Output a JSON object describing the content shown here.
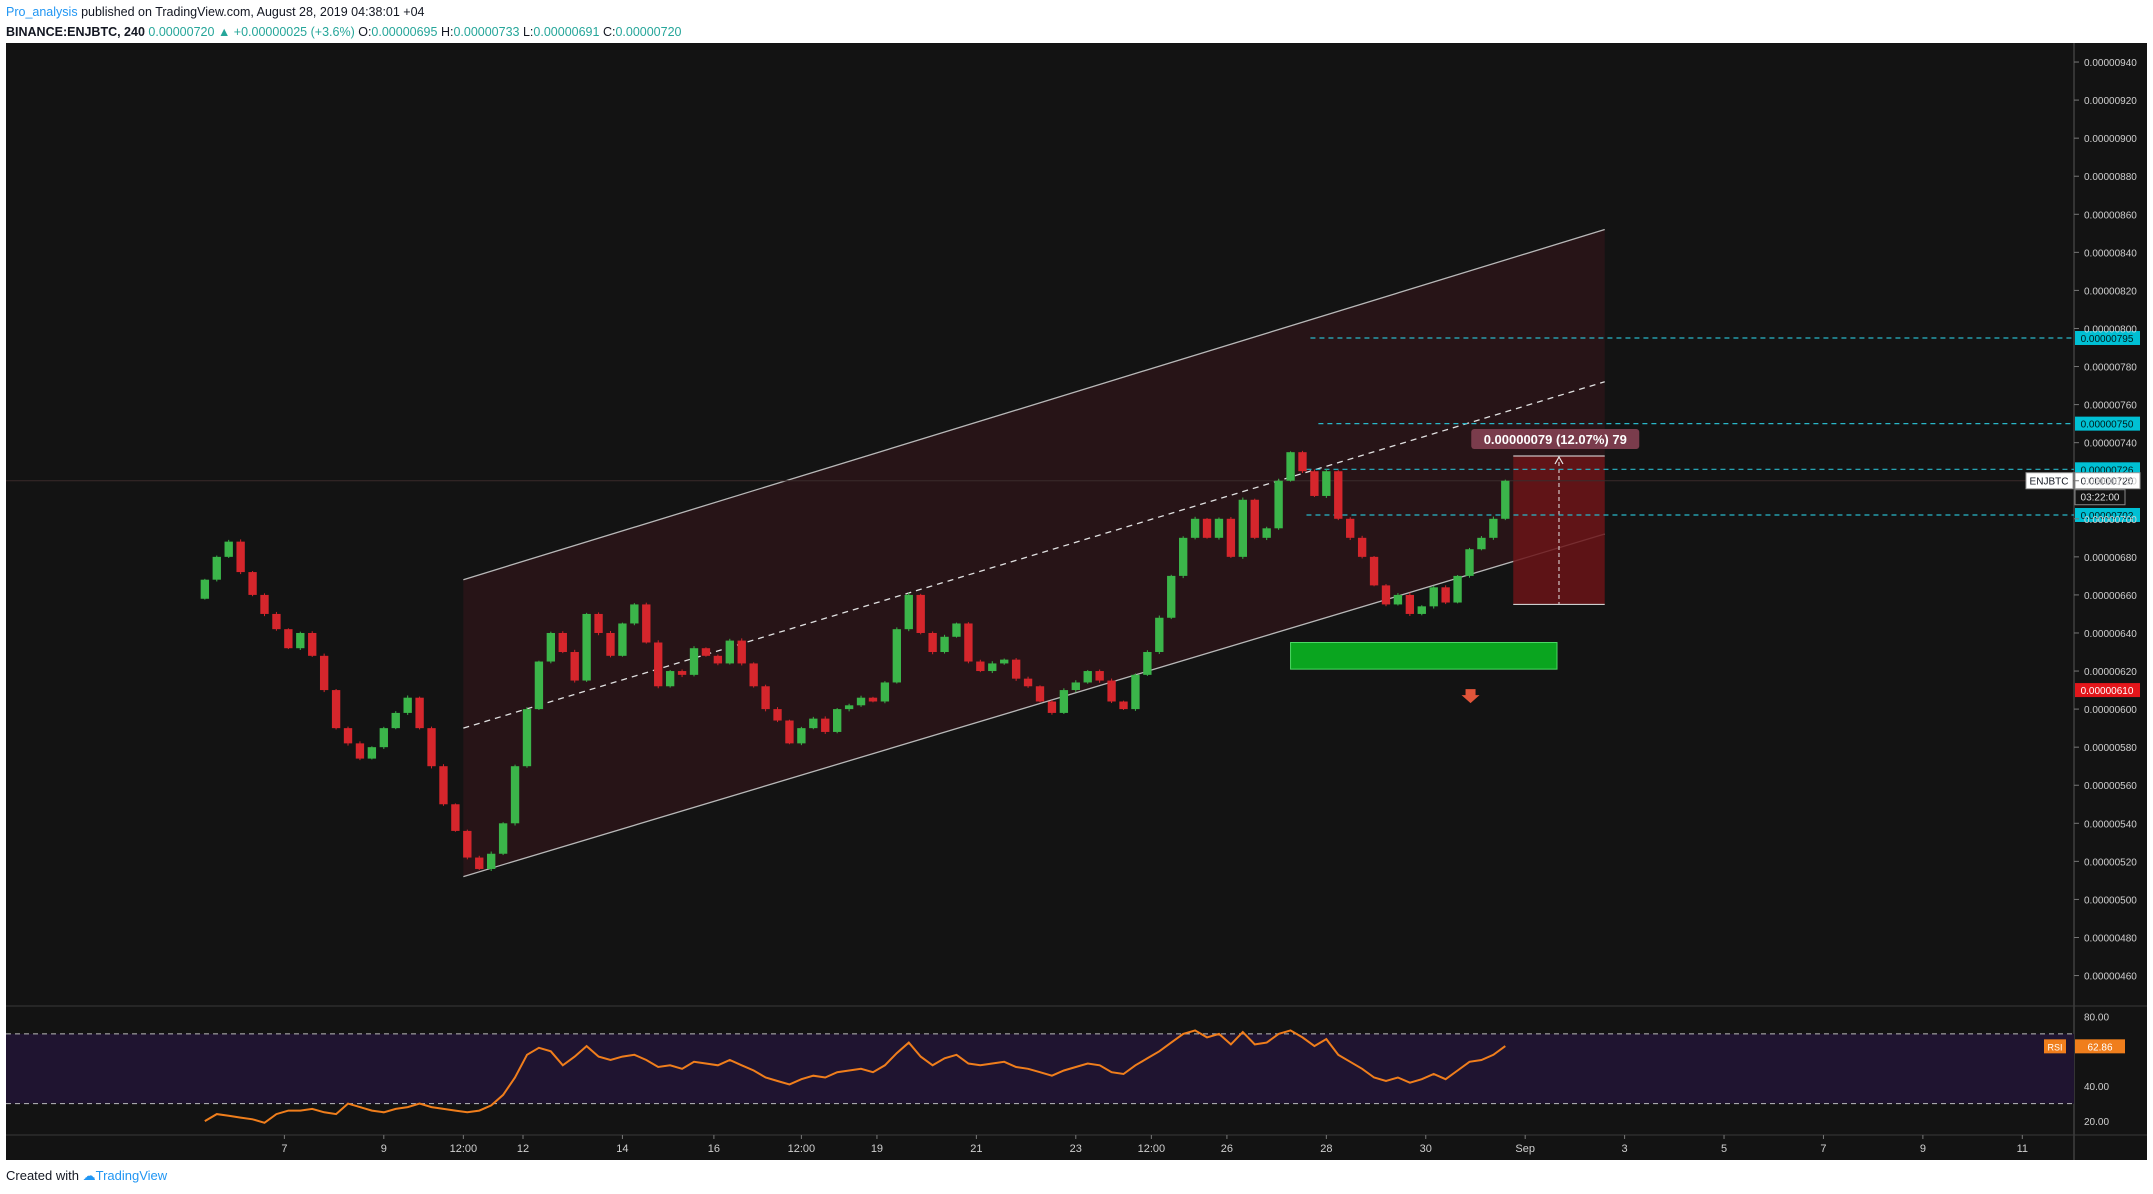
{
  "header": {
    "author": "Pro_analysis",
    "published": "published on TradingView.com, August 28, 2019 04:38:01 +04",
    "symbol": "BINANCE:ENJBTC, 240",
    "last": "0.00000720",
    "change": "+0.00000025 (+3.6%)",
    "o_label": "O:",
    "o": "0.00000695",
    "h_label": "H:",
    "h": "0.00000733",
    "l_label": "L:",
    "l": "0.00000691",
    "c_label": "C:",
    "c": "0.00000720"
  },
  "footer": {
    "created_with": "Created with",
    "brand": "TradingView"
  },
  "colors": {
    "background": "#131313",
    "up": "#3bb54a",
    "down": "#d5262c",
    "channel_line": "#b8b8b8",
    "channel_fill": "#2b1519",
    "level_line": "#29b6c8",
    "green_zone": "#0aa51f",
    "target_box": "#6b1417",
    "target_label": "#7a3c4c",
    "rsi": "#f07e1c",
    "rsi_fill": "#1f1430",
    "stop_badge": "#e3161b"
  },
  "chart_data": {
    "type": "candlestick",
    "symbol": "ENJBTC",
    "timeframe": "240",
    "x_ticks": [
      "7",
      "9",
      "12:00",
      "12",
      "14",
      "16",
      "12:00",
      "19",
      "21",
      "23",
      "12:00",
      "26",
      "28",
      "30",
      "Sep",
      "3",
      "5",
      "7",
      "9",
      "11"
    ],
    "x_tick_positions": [
      8,
      10.5,
      12.5,
      14,
      16.5,
      18.8,
      21,
      22.9,
      25.4,
      27.9,
      29.8,
      31.7,
      34.2,
      36.7,
      39.2,
      41.7,
      44.2,
      46.7,
      49.2,
      51.7
    ],
    "x_range": [
      1,
      53
    ],
    "y_range": [
      4.44e-06,
      9.5e-06
    ],
    "y_ticks": [
      "0.00000940",
      "0.00000920",
      "0.00000900",
      "0.00000880",
      "0.00000860",
      "0.00000840",
      "0.00000820",
      "0.00000800",
      "0.00000780",
      "0.00000760",
      "0.00000740",
      "0.00000720",
      "0.00000700",
      "0.00000680",
      "0.00000660",
      "0.00000640",
      "0.00000620",
      "0.00000600",
      "0.00000580",
      "0.00000560",
      "0.00000540",
      "0.00000520",
      "0.00000500",
      "0.00000480",
      "0.00000460"
    ],
    "close_path": [
      [
        6.0,
        6.68e-06
      ],
      [
        6.3,
        6.8e-06
      ],
      [
        6.6,
        6.88e-06
      ],
      [
        6.9,
        6.72e-06
      ],
      [
        7.2,
        6.6e-06
      ],
      [
        7.5,
        6.5e-06
      ],
      [
        7.8,
        6.42e-06
      ],
      [
        8.1,
        6.32e-06
      ],
      [
        8.4,
        6.4e-06
      ],
      [
        8.7,
        6.28e-06
      ],
      [
        9.0,
        6.1e-06
      ],
      [
        9.3,
        5.9e-06
      ],
      [
        9.6,
        5.82e-06
      ],
      [
        9.9,
        5.74e-06
      ],
      [
        10.2,
        5.8e-06
      ],
      [
        10.5,
        5.9e-06
      ],
      [
        10.8,
        5.98e-06
      ],
      [
        11.1,
        6.06e-06
      ],
      [
        11.4,
        5.9e-06
      ],
      [
        11.7,
        5.7e-06
      ],
      [
        12.0,
        5.5e-06
      ],
      [
        12.3,
        5.36e-06
      ],
      [
        12.6,
        5.22e-06
      ],
      [
        12.9,
        5.16e-06
      ],
      [
        13.2,
        5.24e-06
      ],
      [
        13.5,
        5.4e-06
      ],
      [
        13.8,
        5.7e-06
      ],
      [
        14.1,
        6e-06
      ],
      [
        14.4,
        6.25e-06
      ],
      [
        14.7,
        6.4e-06
      ],
      [
        15.0,
        6.3e-06
      ],
      [
        15.3,
        6.15e-06
      ],
      [
        15.6,
        6.5e-06
      ],
      [
        15.9,
        6.4e-06
      ],
      [
        16.2,
        6.28e-06
      ],
      [
        16.5,
        6.45e-06
      ],
      [
        16.8,
        6.55e-06
      ],
      [
        17.1,
        6.35e-06
      ],
      [
        17.4,
        6.12e-06
      ],
      [
        17.7,
        6.2e-06
      ],
      [
        18.0,
        6.18e-06
      ],
      [
        18.3,
        6.32e-06
      ],
      [
        18.6,
        6.28e-06
      ],
      [
        18.9,
        6.24e-06
      ],
      [
        19.2,
        6.36e-06
      ],
      [
        19.5,
        6.24e-06
      ],
      [
        19.8,
        6.12e-06
      ],
      [
        20.1,
        6e-06
      ],
      [
        20.4,
        5.94e-06
      ],
      [
        20.7,
        5.82e-06
      ],
      [
        21.0,
        5.9e-06
      ],
      [
        21.3,
        5.95e-06
      ],
      [
        21.6,
        5.88e-06
      ],
      [
        21.9,
        6e-06
      ],
      [
        22.2,
        6.02e-06
      ],
      [
        22.5,
        6.06e-06
      ],
      [
        22.8,
        6.04e-06
      ],
      [
        23.1,
        6.14e-06
      ],
      [
        23.4,
        6.42e-06
      ],
      [
        23.7,
        6.6e-06
      ],
      [
        24.0,
        6.4e-06
      ],
      [
        24.3,
        6.3e-06
      ],
      [
        24.6,
        6.38e-06
      ],
      [
        24.9,
        6.45e-06
      ],
      [
        25.2,
        6.25e-06
      ],
      [
        25.5,
        6.2e-06
      ],
      [
        25.8,
        6.24e-06
      ],
      [
        26.1,
        6.26e-06
      ],
      [
        26.4,
        6.16e-06
      ],
      [
        26.7,
        6.12e-06
      ],
      [
        27.0,
        6.04e-06
      ],
      [
        27.3,
        5.98e-06
      ],
      [
        27.6,
        6.1e-06
      ],
      [
        27.9,
        6.14e-06
      ],
      [
        28.2,
        6.2e-06
      ],
      [
        28.5,
        6.15e-06
      ],
      [
        28.8,
        6.04e-06
      ],
      [
        29.1,
        6e-06
      ],
      [
        29.4,
        6.18e-06
      ],
      [
        29.7,
        6.3e-06
      ],
      [
        30.0,
        6.48e-06
      ],
      [
        30.3,
        6.7e-06
      ],
      [
        30.6,
        6.9e-06
      ],
      [
        30.9,
        7e-06
      ],
      [
        31.2,
        6.9e-06
      ],
      [
        31.5,
        7e-06
      ],
      [
        31.8,
        6.8e-06
      ],
      [
        32.1,
        7.1e-06
      ],
      [
        32.4,
        6.9e-06
      ],
      [
        32.7,
        6.95e-06
      ],
      [
        33.0,
        7.2e-06
      ],
      [
        33.3,
        7.35e-06
      ],
      [
        33.6,
        7.25e-06
      ],
      [
        33.9,
        7.12e-06
      ],
      [
        34.2,
        7.25e-06
      ],
      [
        34.5,
        7e-06
      ],
      [
        34.8,
        6.9e-06
      ],
      [
        35.1,
        6.8e-06
      ],
      [
        35.4,
        6.65e-06
      ],
      [
        35.7,
        6.55e-06
      ],
      [
        36.0,
        6.6e-06
      ],
      [
        36.3,
        6.5e-06
      ],
      [
        36.6,
        6.54e-06
      ],
      [
        36.9,
        6.64e-06
      ],
      [
        37.2,
        6.56e-06
      ],
      [
        37.5,
        6.7e-06
      ],
      [
        37.8,
        6.84e-06
      ],
      [
        38.1,
        6.9e-06
      ],
      [
        38.4,
        7e-06
      ],
      [
        38.7,
        7.2e-06
      ]
    ],
    "channel": {
      "upper": [
        [
          12.5,
          6.68e-06
        ],
        [
          41.2,
          8.52e-06
        ]
      ],
      "middle": [
        [
          12.5,
          5.9e-06
        ],
        [
          41.2,
          7.72e-06
        ]
      ],
      "lower": [
        [
          12.5,
          5.12e-06
        ],
        [
          41.2,
          6.92e-06
        ]
      ]
    },
    "levels": [
      {
        "price": 7.95e-06,
        "label": "0.00000795"
      },
      {
        "price": 7.5e-06,
        "label": "0.00000750"
      },
      {
        "price": 7.26e-06,
        "label": "0.00000726"
      },
      {
        "price": 7.02e-06,
        "label": "0.00000702"
      }
    ],
    "current_price": {
      "price": 7.2e-06,
      "symbol_label": "ENJBTC",
      "value": "0.00000720",
      "countdown": "03:22:00"
    },
    "stop_level": {
      "price": 6.1e-06,
      "label": "0.00000610"
    },
    "green_zone": {
      "x": [
        33.3,
        40.0
      ],
      "y": [
        6.21e-06,
        6.35e-06
      ]
    },
    "target_box": {
      "x": [
        38.9,
        41.2
      ],
      "y": [
        6.55e-06,
        7.33e-06
      ]
    },
    "target_label": "0.00000079 (12.07%) 79",
    "rsi": {
      "name": "RSI",
      "value": 62.86,
      "value_label": "62.86",
      "overbought": 70,
      "oversold": 30,
      "y_range": [
        12,
        86
      ],
      "y_ticks": [
        "80.00",
        "40.00",
        "20.00"
      ],
      "path": [
        [
          6.0,
          20
        ],
        [
          6.3,
          24
        ],
        [
          6.6,
          23
        ],
        [
          6.9,
          22
        ],
        [
          7.2,
          21
        ],
        [
          7.5,
          19
        ],
        [
          7.8,
          24
        ],
        [
          8.1,
          26
        ],
        [
          8.4,
          26
        ],
        [
          8.7,
          27
        ],
        [
          9.0,
          25
        ],
        [
          9.3,
          24
        ],
        [
          9.6,
          30
        ],
        [
          9.9,
          28
        ],
        [
          10.2,
          26
        ],
        [
          10.5,
          25
        ],
        [
          10.8,
          27
        ],
        [
          11.1,
          28
        ],
        [
          11.4,
          30
        ],
        [
          11.7,
          28
        ],
        [
          12.0,
          27
        ],
        [
          12.3,
          26
        ],
        [
          12.6,
          25
        ],
        [
          12.9,
          26
        ],
        [
          13.2,
          29
        ],
        [
          13.5,
          35
        ],
        [
          13.8,
          45
        ],
        [
          14.1,
          58
        ],
        [
          14.4,
          62
        ],
        [
          14.7,
          60
        ],
        [
          15.0,
          52
        ],
        [
          15.3,
          57
        ],
        [
          15.6,
          63
        ],
        [
          15.9,
          57
        ],
        [
          16.2,
          55
        ],
        [
          16.5,
          57
        ],
        [
          16.8,
          58
        ],
        [
          17.1,
          55
        ],
        [
          17.4,
          51
        ],
        [
          17.7,
          52
        ],
        [
          18.0,
          50
        ],
        [
          18.3,
          54
        ],
        [
          18.6,
          53
        ],
        [
          18.9,
          52
        ],
        [
          19.2,
          55
        ],
        [
          19.5,
          52
        ],
        [
          19.8,
          49
        ],
        [
          20.1,
          45
        ],
        [
          20.4,
          43
        ],
        [
          20.7,
          41
        ],
        [
          21.0,
          44
        ],
        [
          21.3,
          46
        ],
        [
          21.6,
          45
        ],
        [
          21.9,
          48
        ],
        [
          22.2,
          49
        ],
        [
          22.5,
          50
        ],
        [
          22.8,
          48
        ],
        [
          23.1,
          52
        ],
        [
          23.4,
          59
        ],
        [
          23.7,
          65
        ],
        [
          24.0,
          57
        ],
        [
          24.3,
          52
        ],
        [
          24.6,
          56
        ],
        [
          24.9,
          58
        ],
        [
          25.2,
          53
        ],
        [
          25.5,
          52
        ],
        [
          25.8,
          53
        ],
        [
          26.1,
          54
        ],
        [
          26.4,
          51
        ],
        [
          26.7,
          50
        ],
        [
          27.0,
          48
        ],
        [
          27.3,
          46
        ],
        [
          27.6,
          49
        ],
        [
          27.9,
          51
        ],
        [
          28.2,
          53
        ],
        [
          28.5,
          52
        ],
        [
          28.8,
          48
        ],
        [
          29.1,
          47
        ],
        [
          29.4,
          52
        ],
        [
          29.7,
          56
        ],
        [
          30.0,
          60
        ],
        [
          30.3,
          65
        ],
        [
          30.6,
          70
        ],
        [
          30.9,
          72
        ],
        [
          31.2,
          68
        ],
        [
          31.5,
          70
        ],
        [
          31.8,
          64
        ],
        [
          32.1,
          71
        ],
        [
          32.4,
          64
        ],
        [
          32.7,
          65
        ],
        [
          33.0,
          70
        ],
        [
          33.3,
          72
        ],
        [
          33.6,
          68
        ],
        [
          33.9,
          63
        ],
        [
          34.2,
          67
        ],
        [
          34.5,
          58
        ],
        [
          34.8,
          54
        ],
        [
          35.1,
          50
        ],
        [
          35.4,
          45
        ],
        [
          35.7,
          43
        ],
        [
          36.0,
          45
        ],
        [
          36.3,
          42
        ],
        [
          36.6,
          44
        ],
        [
          36.9,
          47
        ],
        [
          37.2,
          44
        ],
        [
          37.5,
          49
        ],
        [
          37.8,
          54
        ],
        [
          38.1,
          55
        ],
        [
          38.4,
          58
        ],
        [
          38.7,
          63
        ]
      ]
    }
  }
}
